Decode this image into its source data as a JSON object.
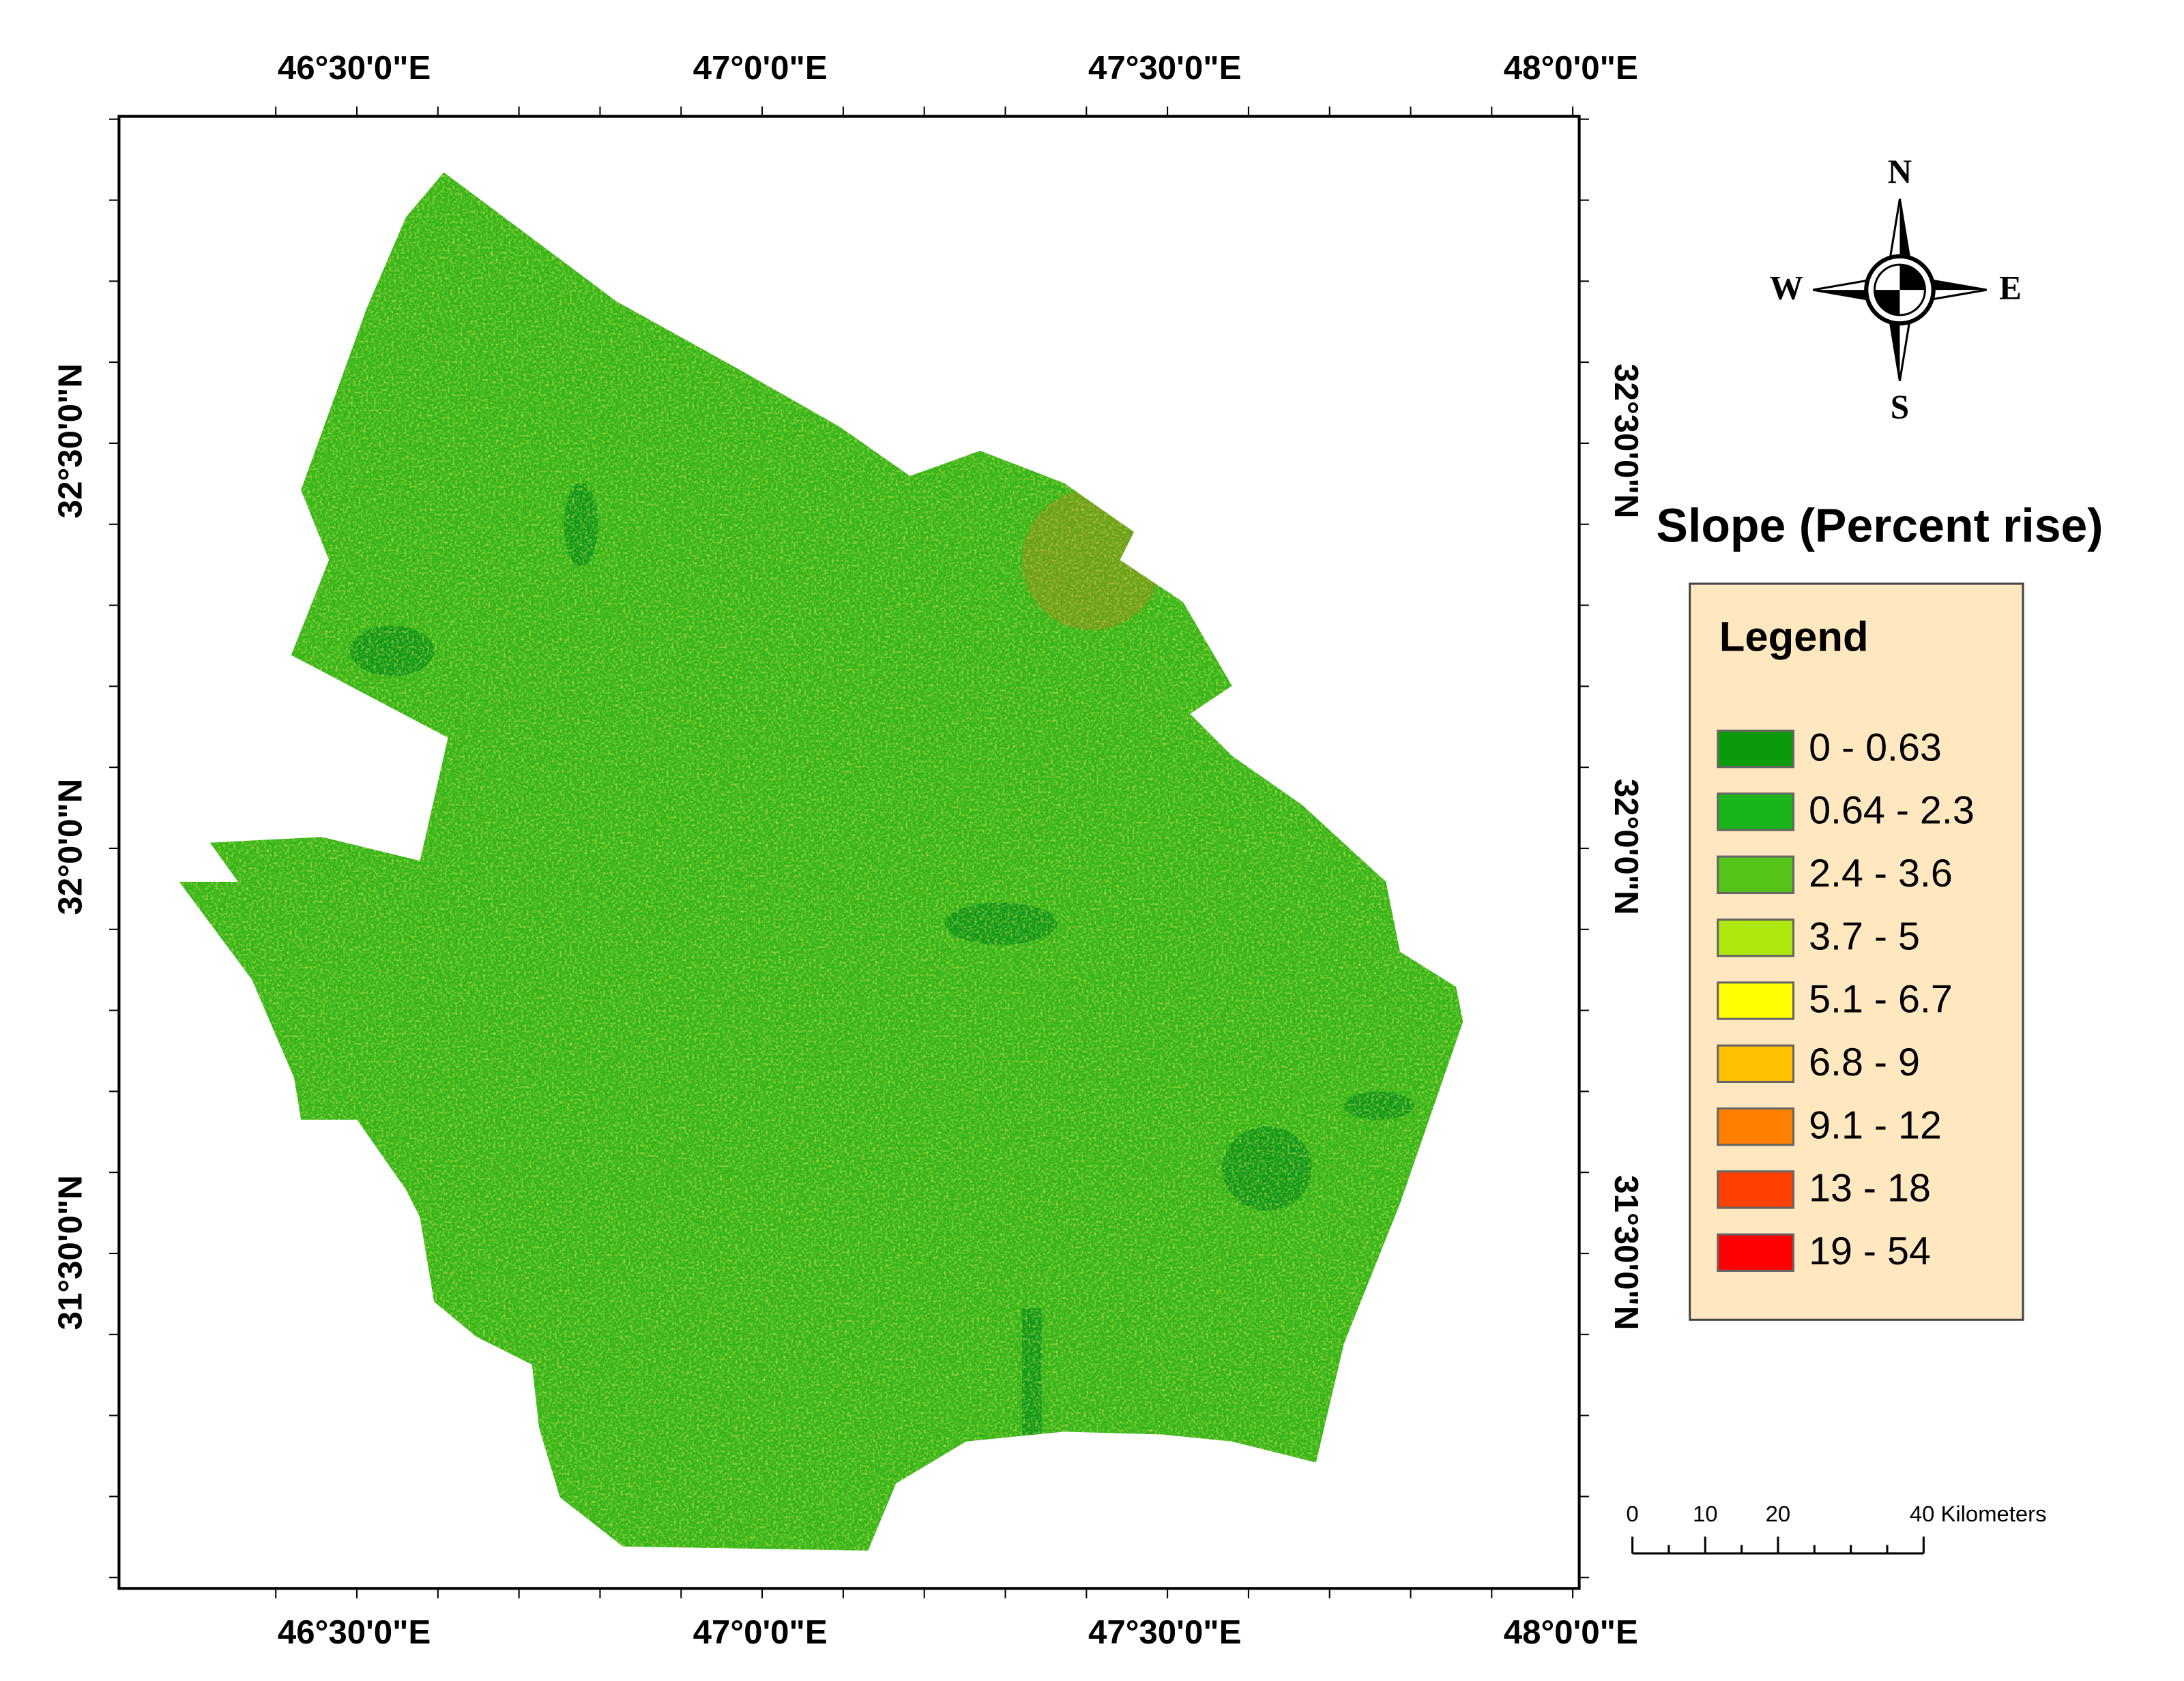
{
  "map": {
    "title": "Slope (Percent rise)",
    "top_labels": [
      "46°30'0\"E",
      "47°0'0\"E",
      "47°30'0\"E",
      "48°0'0\"E"
    ],
    "bottom_labels": [
      "46°30'0\"E",
      "47°0'0\"E",
      "47°30'0\"E",
      "48°0'0\"E"
    ],
    "left_labels": [
      "32°30'0\"N",
      "32°0'0\"N",
      "31°30'0\"N"
    ],
    "right_labels": [
      "32°30'0\"N",
      "32°0'0\"N",
      "31°30'0\"N"
    ]
  },
  "legend": {
    "title": "Legend",
    "items": [
      {
        "label": "0 - 0.63",
        "color": "#0b9a0b"
      },
      {
        "label": "0.64 - 2.3",
        "color": "#1ab51a"
      },
      {
        "label": "2.4 - 3.6",
        "color": "#55c418"
      },
      {
        "label": "3.7 - 5",
        "color": "#aee80e"
      },
      {
        "label": "5.1 - 6.7",
        "color": "#ffff00"
      },
      {
        "label": "6.8 - 9",
        "color": "#ffc000"
      },
      {
        "label": "9.1 - 12",
        "color": "#ff8000"
      },
      {
        "label": "13 - 18",
        "color": "#ff4000"
      },
      {
        "label": "19 - 54",
        "color": "#ff0000"
      }
    ]
  },
  "compass": {
    "north": "N",
    "south": "S",
    "east": "E",
    "west": "W"
  },
  "scale_bar": {
    "labels": [
      "0",
      "10",
      "20",
      "40 Kilometers"
    ]
  }
}
